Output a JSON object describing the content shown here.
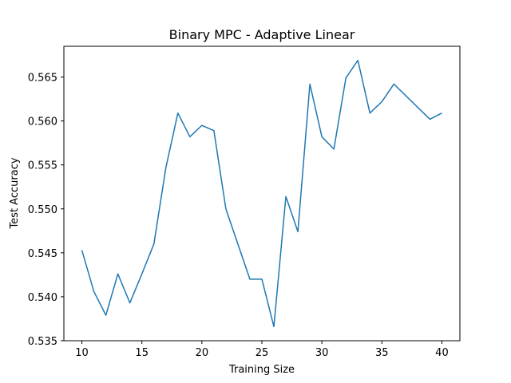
{
  "chart_data": {
    "type": "line",
    "title": "Binary MPC - Adaptive Linear",
    "xlabel": "Training Size",
    "ylabel": "Test Accuracy",
    "xlim": [
      8.5,
      41.5
    ],
    "ylim": [
      0.535,
      0.5685
    ],
    "xticks": [
      10,
      15,
      20,
      25,
      30,
      35,
      40
    ],
    "xtick_labels": [
      "10",
      "15",
      "20",
      "25",
      "30",
      "35",
      "40"
    ],
    "yticks": [
      0.535,
      0.54,
      0.545,
      0.55,
      0.555,
      0.56,
      0.565
    ],
    "ytick_labels": [
      "0.535",
      "0.540",
      "0.545",
      "0.550",
      "0.555",
      "0.560",
      "0.565"
    ],
    "grid": false,
    "series": [
      {
        "color": "#1f77b4",
        "x": [
          10,
          11,
          12,
          13,
          14,
          15,
          16,
          17,
          18,
          19,
          20,
          21,
          22,
          23,
          24,
          25,
          26,
          27,
          28,
          29,
          30,
          31,
          32,
          33,
          34,
          35,
          36,
          39,
          40
        ],
        "y": [
          0.5453,
          0.5406,
          0.5379,
          0.5426,
          0.5393,
          0.5426,
          0.546,
          0.5547,
          0.5609,
          0.5582,
          0.5595,
          0.5589,
          0.55,
          0.546,
          0.542,
          0.542,
          0.5366,
          0.5514,
          0.5474,
          0.5642,
          0.5582,
          0.5568,
          0.5649,
          0.5669,
          0.5609,
          0.5622,
          0.5642,
          0.5602,
          0.5609
        ]
      }
    ]
  }
}
